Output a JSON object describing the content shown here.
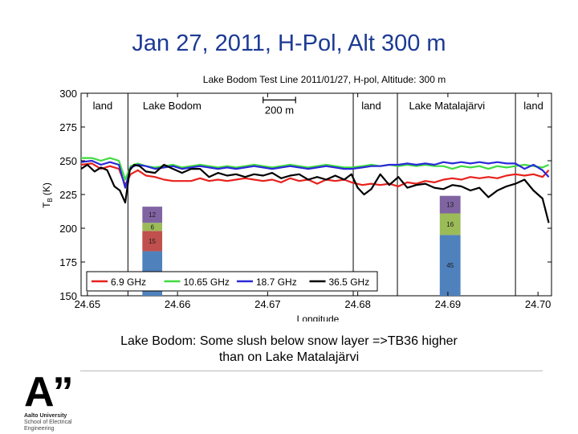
{
  "slide_title": "Jan 27, 2011, H-Pol, Alt 300 m",
  "caption_line1": "Lake Bodom: Some slush below snow layer =>TB36 higher",
  "caption_line2": "than on Lake Matalajärvi",
  "logo": {
    "mark": "A”",
    "line1": "Aalto University",
    "line2": "School of Electrical",
    "line3": "Engineering"
  },
  "chart_data": {
    "type": "line",
    "title": "Lake Bodom Test Line 2011/01/27, H-pol, Altitude: 300 m",
    "xlabel": "Longitude",
    "ylabel_main": "T",
    "ylabel_sub": "B",
    "ylabel_unit": "(K)",
    "xlim": [
      24.6493,
      24.7015
    ],
    "ylim": [
      150,
      300
    ],
    "xticks": [
      "24.65",
      "24.66",
      "24.67",
      "24.68",
      "24.69",
      "24.70"
    ],
    "yticks": [
      "150",
      "175",
      "200",
      "225",
      "250",
      "275",
      "300"
    ],
    "boundaries": [
      24.6545,
      24.6795,
      24.6844,
      24.6975
    ],
    "regions": [
      {
        "label": "land",
        "x": 24.6517
      },
      {
        "label": "Lake Bodom",
        "x": 24.6594
      },
      {
        "label": "land",
        "x": 24.6815
      },
      {
        "label": "Lake Matalajärvi",
        "x": 24.6899
      },
      {
        "label": "land",
        "x": 24.6995
      }
    ],
    "scale_bar": {
      "label": "200 m",
      "x_start": 24.6695,
      "x_end": 24.6731,
      "y": 295
    },
    "colors": {
      "6.9": "#e8211c",
      "10.65": "#3fdc3f",
      "18.7": "#2a2ad8",
      "36.5": "#000000",
      "divider": "#000000"
    },
    "legend_position": "bottom",
    "series": [
      {
        "name": "6.9 GHz",
        "color": "#e8211c",
        "x": [
          24.6493,
          24.6505,
          24.6515,
          24.6525,
          24.6535,
          24.6542,
          24.6548,
          24.6556,
          24.6565,
          24.6575,
          24.6585,
          24.6595,
          24.6605,
          24.6615,
          24.6625,
          24.6635,
          24.6645,
          24.6655,
          24.6665,
          24.6675,
          24.6685,
          24.6695,
          24.6705,
          24.6715,
          24.6725,
          24.6735,
          24.6745,
          24.6755,
          24.6765,
          24.6775,
          24.6785,
          24.6793,
          24.6805,
          24.6815,
          24.6825,
          24.6835,
          24.6845,
          24.6855,
          24.6865,
          24.6875,
          24.6885,
          24.6895,
          24.6905,
          24.6915,
          24.6925,
          24.6935,
          24.6945,
          24.6955,
          24.6965,
          24.6975,
          24.6985,
          24.6995,
          24.7005,
          24.7012
        ],
        "y": [
          247,
          248,
          244,
          246,
          244,
          232,
          240,
          243,
          239,
          238,
          236,
          235,
          235,
          235,
          237,
          235,
          236,
          235,
          236,
          237,
          236,
          235,
          236,
          234,
          237,
          235,
          236,
          233,
          236,
          235,
          236,
          234,
          232,
          233,
          232,
          233,
          231,
          234,
          233,
          235,
          234,
          236,
          237,
          236,
          238,
          237,
          238,
          237,
          239,
          240,
          239,
          240,
          238,
          243
        ]
      },
      {
        "name": "10.65 GHz",
        "color": "#3fdc3f",
        "x": [
          24.6493,
          24.6505,
          24.6515,
          24.6525,
          24.6535,
          24.6542,
          24.6548,
          24.6556,
          24.6565,
          24.6575,
          24.6585,
          24.6595,
          24.6605,
          24.6615,
          24.6625,
          24.6635,
          24.6645,
          24.6655,
          24.6665,
          24.6675,
          24.6685,
          24.6695,
          24.6705,
          24.6715,
          24.6725,
          24.6735,
          24.6745,
          24.6755,
          24.6765,
          24.6775,
          24.6785,
          24.6793,
          24.6805,
          24.6815,
          24.6825,
          24.6835,
          24.6845,
          24.6855,
          24.6865,
          24.6875,
          24.6885,
          24.6895,
          24.6905,
          24.6915,
          24.6925,
          24.6935,
          24.6945,
          24.6955,
          24.6965,
          24.6975,
          24.6985,
          24.6995,
          24.7005,
          24.7012
        ],
        "y": [
          252,
          252,
          250,
          252,
          250,
          236,
          246,
          248,
          246,
          245,
          246,
          247,
          245,
          246,
          247,
          246,
          245,
          246,
          245,
          246,
          247,
          246,
          245,
          246,
          247,
          246,
          245,
          246,
          247,
          246,
          245,
          245,
          246,
          247,
          246,
          247,
          246,
          247,
          246,
          247,
          246,
          246,
          244,
          246,
          245,
          246,
          244,
          246,
          245,
          246,
          247,
          246,
          245,
          247
        ]
      },
      {
        "name": "18.7 GHz",
        "color": "#2a2ad8",
        "x": [
          24.6493,
          24.6505,
          24.6515,
          24.6525,
          24.6535,
          24.6542,
          24.6548,
          24.6556,
          24.6565,
          24.6575,
          24.6585,
          24.6595,
          24.6605,
          24.6615,
          24.6625,
          24.6635,
          24.6645,
          24.6655,
          24.6665,
          24.6675,
          24.6685,
          24.6695,
          24.6705,
          24.6715,
          24.6725,
          24.6735,
          24.6745,
          24.6755,
          24.6765,
          24.6775,
          24.6785,
          24.6793,
          24.6805,
          24.6815,
          24.6825,
          24.6835,
          24.6845,
          24.6855,
          24.6865,
          24.6875,
          24.6885,
          24.6895,
          24.6905,
          24.6915,
          24.6925,
          24.6935,
          24.6945,
          24.6955,
          24.6965,
          24.6975,
          24.6985,
          24.6995,
          24.7005,
          24.7012
        ],
        "y": [
          249,
          250,
          247,
          249,
          247,
          230,
          245,
          247,
          246,
          244,
          245,
          246,
          244,
          245,
          246,
          245,
          244,
          245,
          244,
          245,
          246,
          245,
          244,
          245,
          246,
          245,
          244,
          245,
          246,
          245,
          244,
          244,
          245,
          246,
          246,
          247,
          247,
          248,
          247,
          248,
          247,
          249,
          248,
          249,
          248,
          249,
          248,
          249,
          248,
          248,
          244,
          247,
          243,
          238
        ]
      },
      {
        "name": "36.5 GHz",
        "color": "#000000",
        "x": [
          24.6493,
          24.65,
          24.6508,
          24.6515,
          24.6522,
          24.653,
          24.6536,
          24.6542,
          24.6547,
          24.6552,
          24.6558,
          24.6565,
          24.6575,
          24.6585,
          24.6595,
          24.6605,
          24.6615,
          24.6625,
          24.6635,
          24.6645,
          24.6655,
          24.6665,
          24.6675,
          24.6685,
          24.6695,
          24.6705,
          24.6715,
          24.6725,
          24.6735,
          24.6745,
          24.6755,
          24.6765,
          24.6775,
          24.6785,
          24.6793,
          24.68,
          24.6807,
          24.6815,
          24.6825,
          24.6835,
          24.6845,
          24.6855,
          24.6865,
          24.6875,
          24.6885,
          24.6895,
          24.6905,
          24.6915,
          24.6925,
          24.6935,
          24.6945,
          24.6955,
          24.6965,
          24.6975,
          24.6985,
          24.6995,
          24.7005,
          24.7012
        ],
        "y": [
          244,
          247,
          242,
          245,
          243,
          231,
          228,
          219,
          243,
          247,
          246,
          242,
          241,
          247,
          244,
          241,
          244,
          244,
          238,
          241,
          239,
          240,
          238,
          240,
          239,
          241,
          237,
          239,
          240,
          236,
          238,
          236,
          239,
          236,
          240,
          230,
          225,
          229,
          240,
          232,
          238,
          230,
          232,
          233,
          230,
          229,
          232,
          231,
          228,
          230,
          223,
          228,
          231,
          233,
          236,
          228,
          222,
          204
        ]
      }
    ],
    "stack_bars": [
      {
        "x_left": 24.6561,
        "x_right": 24.6583,
        "segments": [
          {
            "label": "33",
            "value": 33,
            "color": "#4f81bd"
          },
          {
            "label": "15",
            "value": 15,
            "color": "#c0504d"
          },
          {
            "label": "6",
            "value": 6,
            "color": "#9bbb59"
          },
          {
            "label": "12",
            "value": 12,
            "color": "#8064a2"
          }
        ]
      },
      {
        "x_left": 24.6891,
        "x_right": 24.6914,
        "segments": [
          {
            "label": "45",
            "value": 45,
            "color": "#4f81bd"
          },
          {
            "label": "16",
            "value": 16,
            "color": "#9bbb59"
          },
          {
            "label": "13",
            "value": 13,
            "color": "#8064a2"
          }
        ]
      }
    ]
  }
}
